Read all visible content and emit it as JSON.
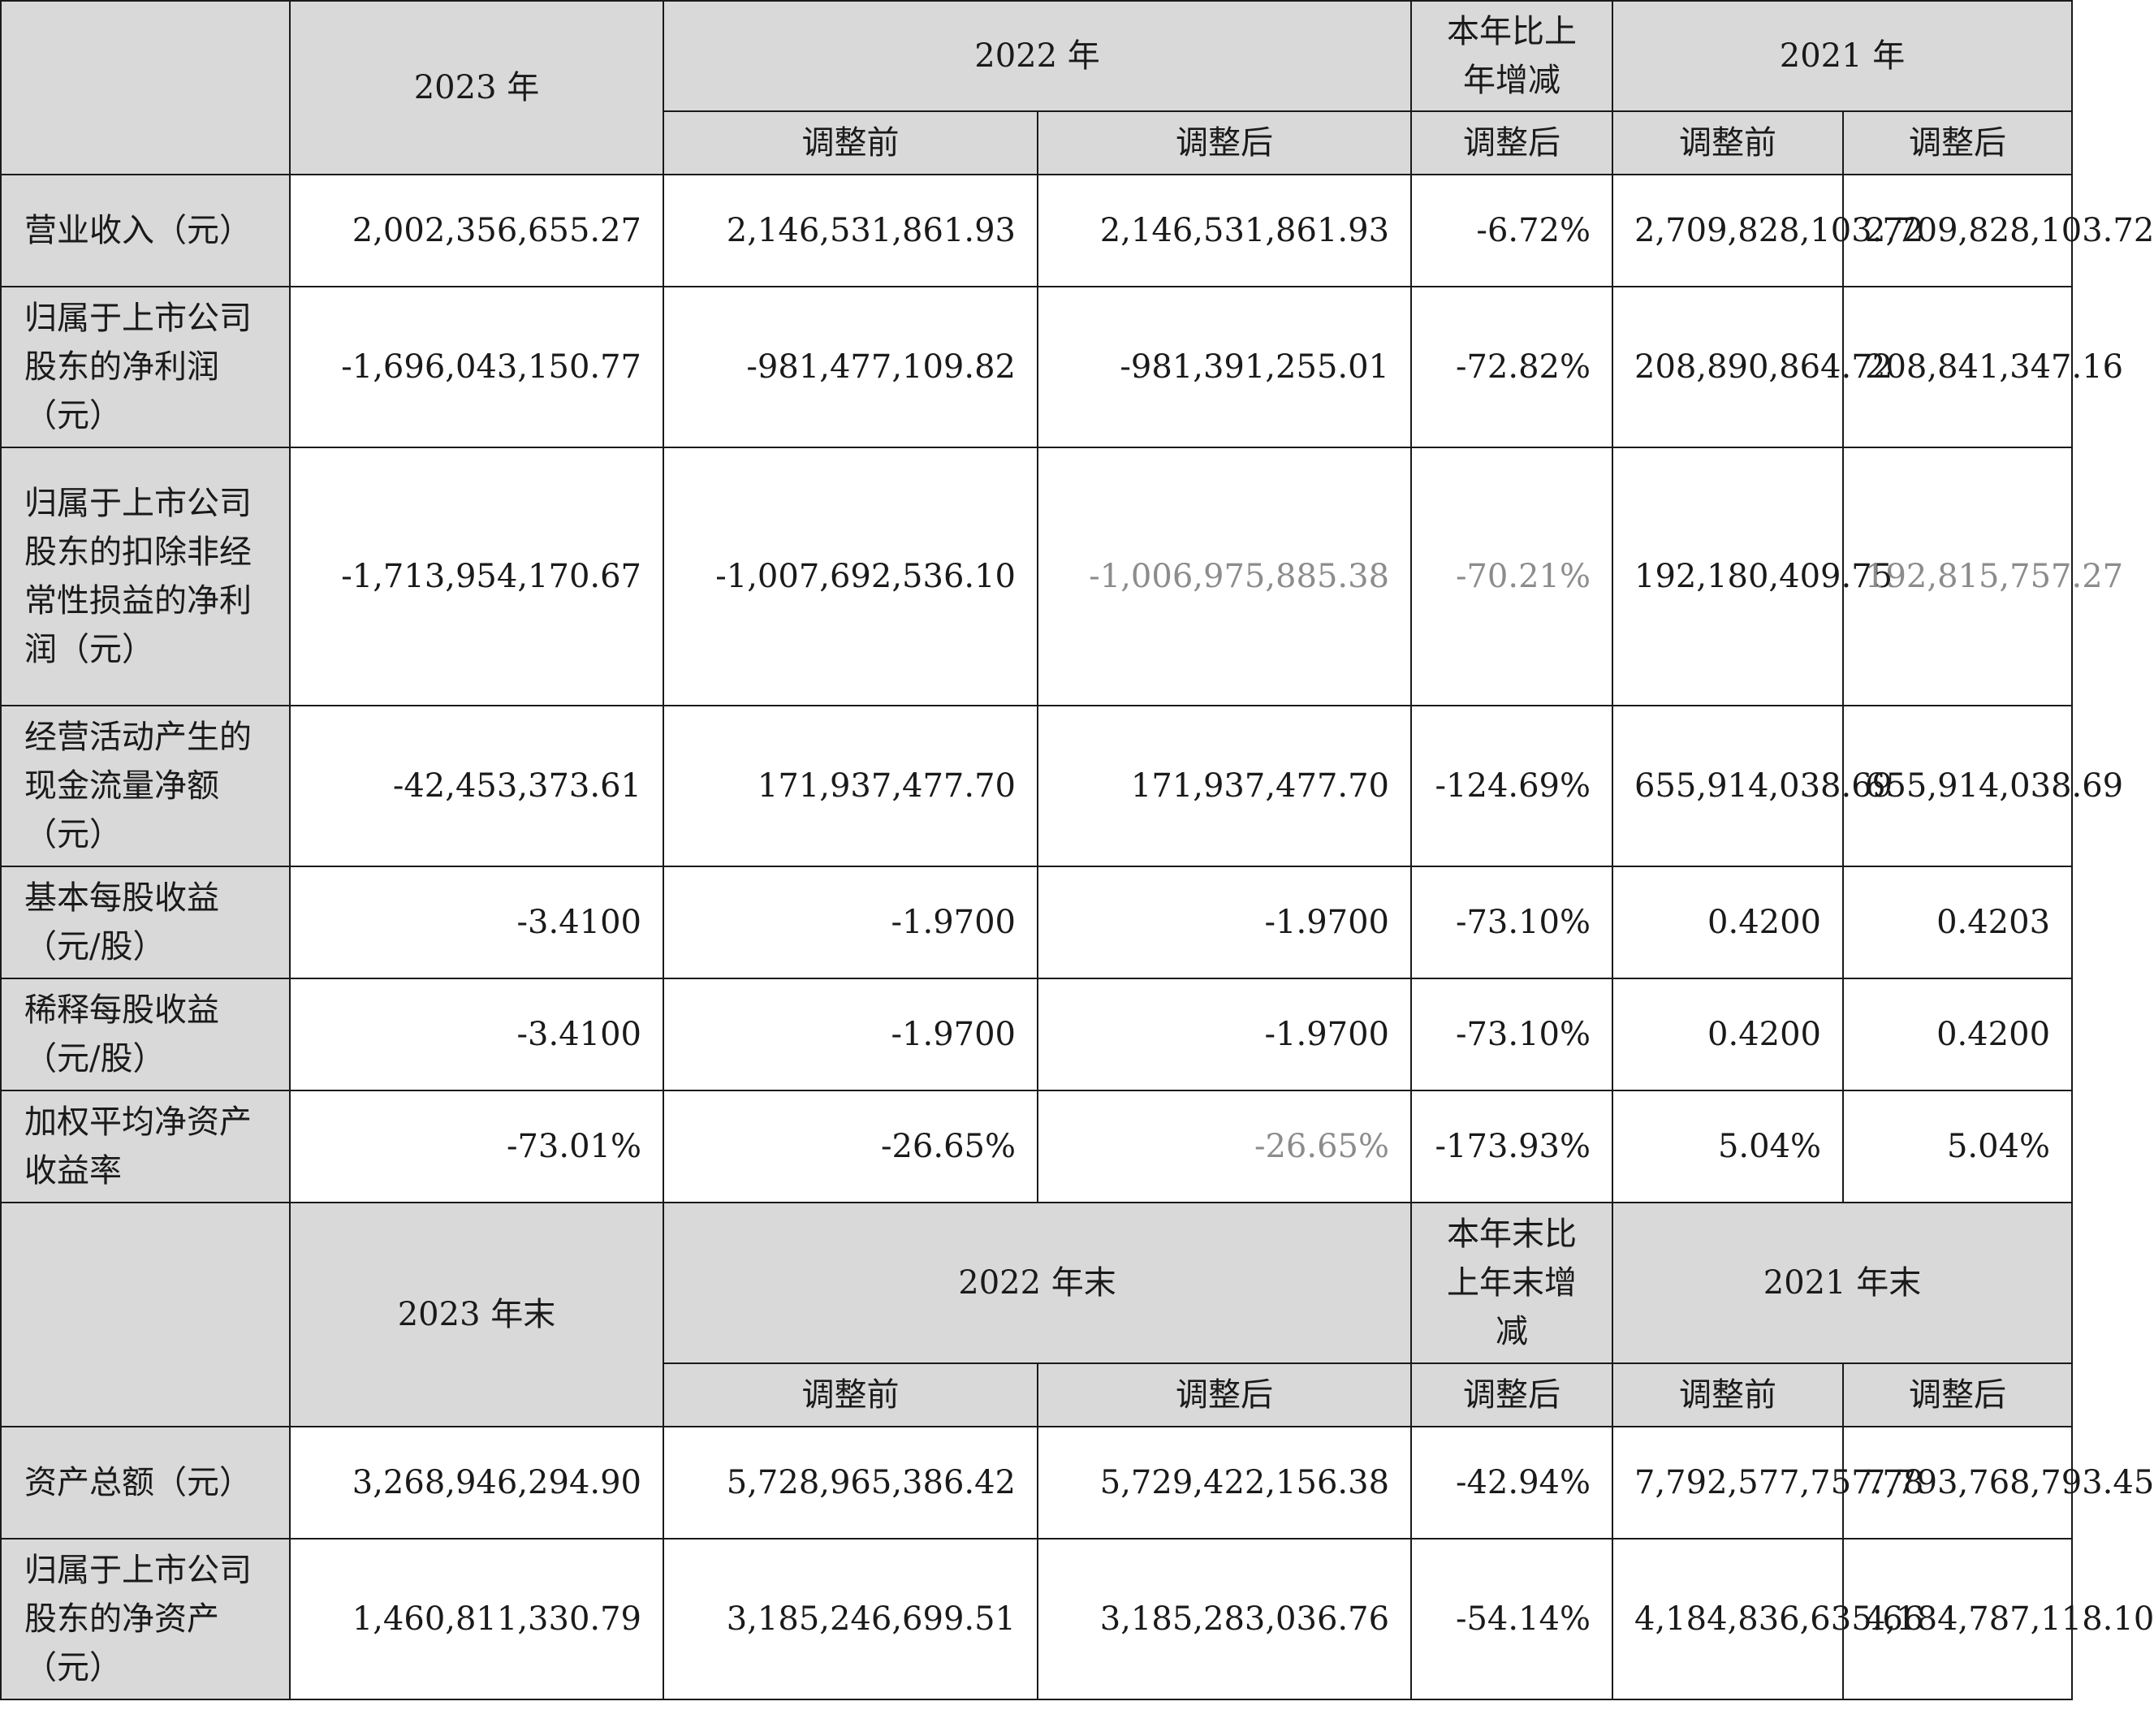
{
  "top_header": {
    "y2023": "2023 年",
    "y2022": "2022 年",
    "change": "本年比上年增减",
    "y2021": "2021 年",
    "before": "调整前",
    "after": "调整后"
  },
  "rows": [
    {
      "label": "营业收入（元）",
      "v2023": "2,002,356,655.27",
      "v2022_before": "2,146,531,861.93",
      "v2022_after": "2,146,531,861.93",
      "change": "-6.72%",
      "v2021_before": "2,709,828,103.72",
      "v2021_after": "2,709,828,103.72"
    },
    {
      "label": "归属于上市公司股东的净利润（元）",
      "v2023": "-1,696,043,150.77",
      "v2022_before": "-981,477,109.82",
      "v2022_after": "-981,391,255.01",
      "change": "-72.82%",
      "v2021_before": "208,890,864.72",
      "v2021_after": "208,841,347.16"
    },
    {
      "label": "归属于上市公司股东的扣除非经常性损益的净利润（元）",
      "v2023": "-1,713,954,170.67",
      "v2022_before": "-1,007,692,536.10",
      "v2022_after": "-1,006,975,885.38",
      "change": "-70.21%",
      "v2021_before": "192,180,409.75",
      "v2021_after": "192,815,757.27"
    },
    {
      "label": "经营活动产生的现金流量净额（元）",
      "v2023": "-42,453,373.61",
      "v2022_before": "171,937,477.70",
      "v2022_after": "171,937,477.70",
      "change": "-124.69%",
      "v2021_before": "655,914,038.69",
      "v2021_after": "655,914,038.69"
    },
    {
      "label": "基本每股收益（元/股）",
      "v2023": "-3.4100",
      "v2022_before": "-1.9700",
      "v2022_after": "-1.9700",
      "change": "-73.10%",
      "v2021_before": "0.4200",
      "v2021_after": "0.4203"
    },
    {
      "label": "稀释每股收益（元/股）",
      "v2023": "-3.4100",
      "v2022_before": "-1.9700",
      "v2022_after": "-1.9700",
      "change": "-73.10%",
      "v2021_before": "0.4200",
      "v2021_after": "0.4200"
    },
    {
      "label": "加权平均净资产收益率",
      "v2023": "-73.01%",
      "v2022_before": "-26.65%",
      "v2022_after": "-26.65%",
      "change": "-173.93%",
      "v2021_before": "5.04%",
      "v2021_after": "5.04%"
    }
  ],
  "bottom_header": {
    "y2023": "2023 年末",
    "y2022": "2022 年末",
    "change": "本年末比上年末增减",
    "y2021": "2021 年末",
    "before": "调整前",
    "after": "调整后"
  },
  "bottom_rows": [
    {
      "label": "资产总额（元）",
      "v2023": "3,268,946,294.90",
      "v2022_before": "5,728,965,386.42",
      "v2022_after": "5,729,422,156.38",
      "change": "-42.94%",
      "v2021_before": "7,792,577,757.78",
      "v2021_after": "7,793,768,793.45"
    },
    {
      "label": "归属于上市公司股东的净资产（元）",
      "v2023": "1,460,811,330.79",
      "v2022_before": "3,185,246,699.51",
      "v2022_after": "3,185,283,036.76",
      "change": "-54.14%",
      "v2021_before": "4,184,836,635.66",
      "v2021_after": "4,184,787,118.10"
    }
  ]
}
